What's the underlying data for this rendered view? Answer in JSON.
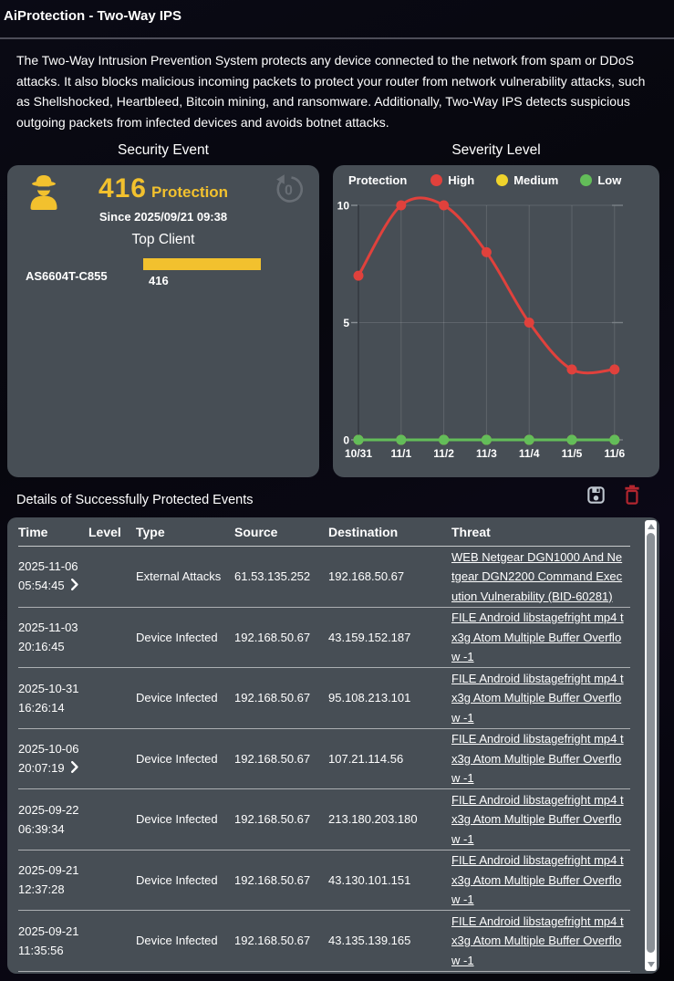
{
  "page": {
    "title": "AiProtection - Two-Way IPS",
    "description": "The Two-Way Intrusion Prevention System protects any device connected to the network from spam or DDoS attacks. It also blocks malicious incoming packets to protect your router from network vulnerability attacks, such as Shellshocked, Heartbleed, Bitcoin mining, and ransomware. Additionally, Two-Way IPS detects suspicious outgoing packets from infected devices and avoids botnet attacks."
  },
  "security_event": {
    "title": "Security Event",
    "count": "416",
    "count_label": "Protection",
    "since": "Since 2025/09/21 09:38",
    "reset_value": "0",
    "accent_color": "#F2C12E",
    "top_client": {
      "heading": "Top Client",
      "name": "AS6604T-C855",
      "value": "416",
      "bar_color": "#F2C12E"
    }
  },
  "severity": {
    "title": "Severity Level"
  },
  "chart_data": {
    "type": "line",
    "title": "Severity Level",
    "legend_label": "Protection",
    "legend_position": "top",
    "x": [
      "10/31",
      "11/1",
      "11/2",
      "11/3",
      "11/4",
      "11/5",
      "11/6"
    ],
    "series": [
      {
        "name": "High",
        "color": "#E0413C",
        "values": [
          7,
          10,
          10,
          8,
          5,
          3,
          3
        ]
      },
      {
        "name": "Medium",
        "color": "#EFD32C",
        "values": [
          0,
          0,
          0,
          0,
          0,
          0,
          0
        ]
      },
      {
        "name": "Low",
        "color": "#63BD59",
        "values": [
          0,
          0,
          0,
          0,
          0,
          0,
          0
        ]
      }
    ],
    "ylim": [
      0,
      10
    ],
    "yticks": [
      0,
      5,
      10
    ],
    "grid": true,
    "smooth": true
  },
  "details": {
    "title": "Details of Successfully Protected Events",
    "columns": [
      "Time",
      "Level",
      "Type",
      "Source",
      "Destination",
      "Threat"
    ],
    "level_color": "#D43A31",
    "rows": [
      {
        "date": "2025-11-06",
        "time": "05:54:45",
        "expandable": true,
        "type": "External Attacks",
        "source": "61.53.135.252",
        "destination": "192.168.50.67",
        "threat": "WEB Netgear DGN1000 And Netgear DGN2200 Command Execution Vulnerability (BID-60281)"
      },
      {
        "date": "2025-11-03",
        "time": "20:16:45",
        "expandable": false,
        "type": "Device Infected",
        "source": "192.168.50.67",
        "destination": "43.159.152.187",
        "threat": "FILE Android libstagefright mp4 tx3g Atom Multiple Buffer Overflow -1"
      },
      {
        "date": "2025-10-31",
        "time": "16:26:14",
        "expandable": false,
        "type": "Device Infected",
        "source": "192.168.50.67",
        "destination": "95.108.213.101",
        "threat": "FILE Android libstagefright mp4 tx3g Atom Multiple Buffer Overflow -1"
      },
      {
        "date": "2025-10-06",
        "time": "20:07:19",
        "expandable": true,
        "type": "Device Infected",
        "source": "192.168.50.67",
        "destination": "107.21.114.56",
        "threat": "FILE Android libstagefright mp4 tx3g Atom Multiple Buffer Overflow -1"
      },
      {
        "date": "2025-09-22",
        "time": "06:39:34",
        "expandable": false,
        "type": "Device Infected",
        "source": "192.168.50.67",
        "destination": "213.180.203.180",
        "threat": "FILE Android libstagefright mp4 tx3g Atom Multiple Buffer Overflow -1"
      },
      {
        "date": "2025-09-21",
        "time": "12:37:28",
        "expandable": false,
        "type": "Device Infected",
        "source": "192.168.50.67",
        "destination": "43.130.101.151",
        "threat": "FILE Android libstagefright mp4 tx3g Atom Multiple Buffer Overflow -1"
      },
      {
        "date": "2025-09-21",
        "time": "11:35:56",
        "expandable": false,
        "type": "Device Infected",
        "source": "192.168.50.67",
        "destination": "43.135.139.165",
        "threat": "FILE Android libstagefright mp4 tx3g Atom Multiple Buffer Overflow -1"
      }
    ]
  }
}
